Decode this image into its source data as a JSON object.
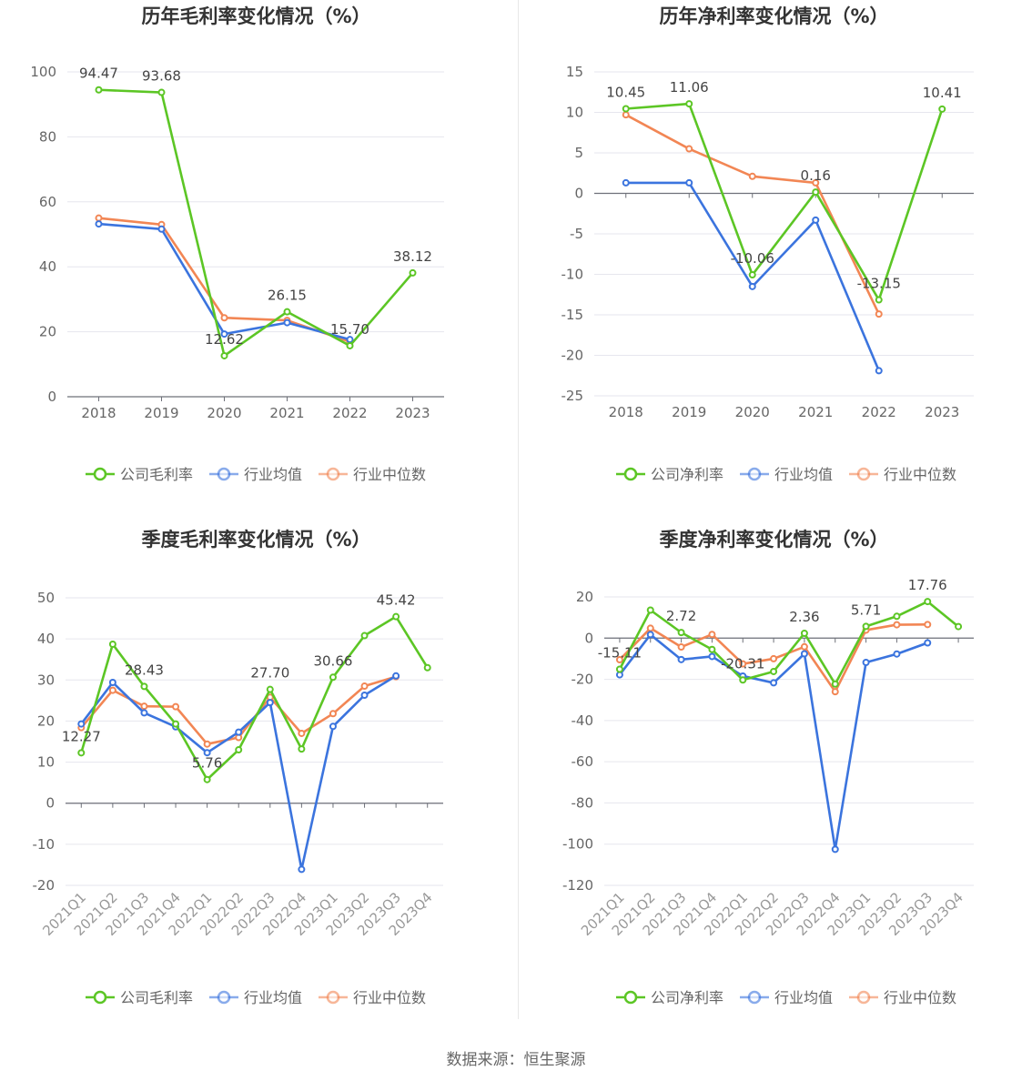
{
  "footer": {
    "source": "数据来源：恒生聚源"
  },
  "colors": {
    "company": "#5cc625",
    "avg": "#3b74de",
    "median": "#f28654"
  },
  "chart_data": [
    {
      "type": "line",
      "title": "历年毛利率变化情况（%）",
      "categories": [
        "2018",
        "2019",
        "2020",
        "2021",
        "2022",
        "2023"
      ],
      "ylim": [
        0,
        100
      ],
      "yticks": [
        0,
        20,
        40,
        60,
        80,
        100
      ],
      "legend": [
        "公司毛利率",
        "行业均值",
        "行业中位数"
      ],
      "series": [
        {
          "name": "公司毛利率",
          "values": [
            94.47,
            93.68,
            12.62,
            26.15,
            15.7,
            38.12
          ],
          "labels": [
            "94.47",
            "93.68",
            "12.62",
            "26.15",
            "15.70",
            "38.12"
          ]
        },
        {
          "name": "行业均值",
          "values": [
            53.2,
            51.6,
            19.3,
            22.8,
            17.6,
            null
          ]
        },
        {
          "name": "行业中位数",
          "values": [
            55.0,
            53.0,
            24.3,
            23.5,
            16.9,
            null
          ]
        }
      ]
    },
    {
      "type": "line",
      "title": "历年净利率变化情况（%）",
      "categories": [
        "2018",
        "2019",
        "2020",
        "2021",
        "2022",
        "2023"
      ],
      "ylim": [
        -25,
        15
      ],
      "yticks": [
        -25,
        -20,
        -15,
        -10,
        -5,
        0,
        5,
        10,
        15
      ],
      "legend": [
        "公司净利率",
        "行业均值",
        "行业中位数"
      ],
      "series": [
        {
          "name": "公司净利率",
          "values": [
            10.45,
            11.06,
            -10.06,
            0.16,
            -13.15,
            10.41
          ],
          "labels": [
            "10.45",
            "11.06",
            "-10.06",
            "0.16",
            "-13.15",
            "10.41"
          ]
        },
        {
          "name": "行业均值",
          "values": [
            1.3,
            1.3,
            -11.5,
            -3.3,
            -21.9,
            null
          ]
        },
        {
          "name": "行业中位数",
          "values": [
            9.7,
            5.5,
            2.1,
            1.3,
            -14.9,
            null
          ]
        }
      ]
    },
    {
      "type": "line",
      "title": "季度毛利率变化情况（%）",
      "categories": [
        "2021Q1",
        "2021Q2",
        "2021Q3",
        "2021Q4",
        "2022Q1",
        "2022Q2",
        "2022Q3",
        "2022Q4",
        "2023Q1",
        "2023Q2",
        "2023Q3",
        "2023Q4"
      ],
      "ylim": [
        -20,
        50
      ],
      "yticks": [
        -20,
        -10,
        0,
        10,
        20,
        30,
        40,
        50
      ],
      "legend": [
        "公司毛利率",
        "行业均值",
        "行业中位数"
      ],
      "series": [
        {
          "name": "公司毛利率",
          "values": [
            12.27,
            38.7,
            28.43,
            19.3,
            5.76,
            13.0,
            27.7,
            13.2,
            30.66,
            40.8,
            45.42,
            33.0
          ],
          "labels": [
            "12.27",
            "",
            "28.43",
            "",
            "5.76",
            "",
            "27.70",
            "",
            "30.66",
            "",
            "45.42",
            ""
          ]
        },
        {
          "name": "行业均值",
          "values": [
            19.3,
            29.4,
            22.0,
            18.6,
            12.3,
            17.3,
            24.5,
            -16.1,
            18.7,
            26.3,
            31.0,
            null
          ]
        },
        {
          "name": "行业中位数",
          "values": [
            18.4,
            27.5,
            23.6,
            23.5,
            14.4,
            16.0,
            25.8,
            17.0,
            21.8,
            28.5,
            30.8,
            null
          ]
        }
      ]
    },
    {
      "type": "line",
      "title": "季度净利率变化情况（%）",
      "categories": [
        "2021Q1",
        "2021Q2",
        "2021Q3",
        "2021Q4",
        "2022Q1",
        "2022Q2",
        "2022Q3",
        "2022Q4",
        "2023Q1",
        "2023Q2",
        "2023Q3",
        "2023Q4"
      ],
      "ylim": [
        -120,
        20
      ],
      "yticks": [
        -120,
        -100,
        -80,
        -60,
        -40,
        -20,
        0,
        20
      ],
      "legend": [
        "公司净利率",
        "行业均值",
        "行业中位数"
      ],
      "series": [
        {
          "name": "公司净利率",
          "values": [
            -15.11,
            13.6,
            2.72,
            -5.5,
            -20.31,
            -16.2,
            2.36,
            -22.3,
            5.71,
            10.6,
            17.76,
            5.6
          ],
          "labels": [
            "-15.11",
            "",
            "2.72",
            "",
            "-20.31",
            "",
            "2.36",
            "",
            "5.71",
            "",
            "17.76",
            ""
          ]
        },
        {
          "name": "行业均值",
          "values": [
            -17.8,
            1.7,
            -10.4,
            -8.9,
            -18.4,
            -21.7,
            -7.6,
            -102.5,
            -11.8,
            -7.7,
            -2.3,
            null
          ]
        },
        {
          "name": "行业中位数",
          "values": [
            -10.5,
            4.8,
            -4.3,
            1.8,
            -12.5,
            -10.0,
            -4.2,
            -26.0,
            3.9,
            6.5,
            6.6,
            null
          ]
        }
      ]
    }
  ]
}
